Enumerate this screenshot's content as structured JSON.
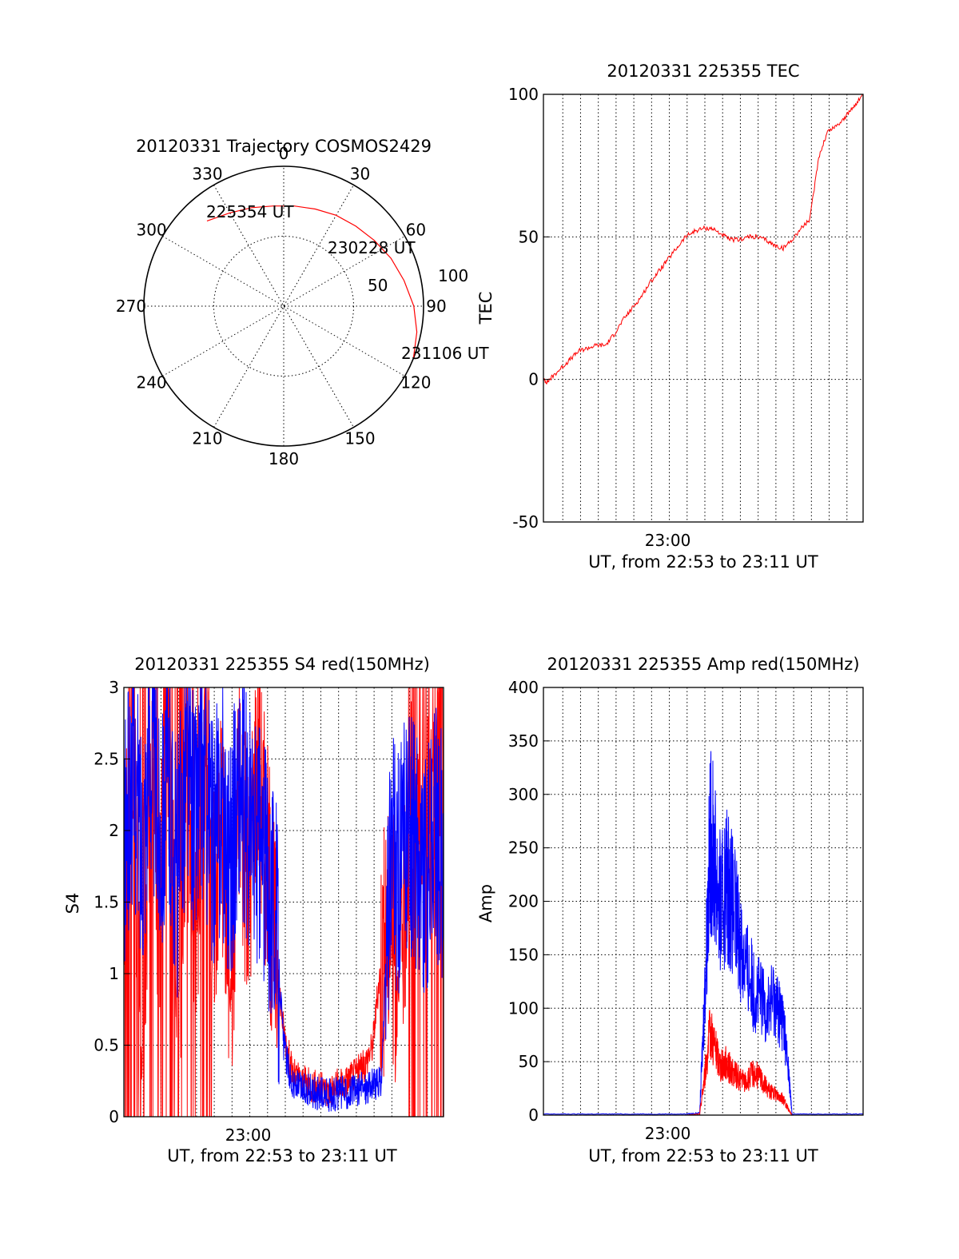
{
  "chart_data": [
    {
      "type": "polar",
      "title": "20120331 Trajectory COSMOS2429",
      "angle_labels": [
        "0",
        "30",
        "60",
        "90",
        "120",
        "150",
        "180",
        "210",
        "240",
        "270",
        "300",
        "330"
      ],
      "radius_labels": [
        "50",
        "100"
      ],
      "radius_range": [
        0,
        100
      ],
      "series": [
        {
          "name": "trajectory",
          "color": "#ff0000",
          "points": [
            {
              "az": 318,
              "zen": 82
            },
            {
              "az": 330,
              "zen": 77
            },
            {
              "az": 342,
              "zen": 74
            },
            {
              "az": 354,
              "zen": 72
            },
            {
              "az": 6,
              "zen": 72
            },
            {
              "az": 18,
              "zen": 73
            },
            {
              "az": 30,
              "zen": 75
            },
            {
              "az": 42,
              "zen": 77
            },
            {
              "az": 54,
              "zen": 80
            },
            {
              "az": 66,
              "zen": 84
            },
            {
              "az": 78,
              "zen": 88
            },
            {
              "az": 90,
              "zen": 93
            },
            {
              "az": 101,
              "zen": 97
            },
            {
              "az": 112,
              "zen": 100
            }
          ]
        }
      ],
      "annotations": [
        "225354 UT",
        "230228 UT",
        "231106 UT"
      ]
    },
    {
      "type": "line",
      "title": "20120331 225355 TEC",
      "xlabel": "UT, from 22:53 to 23:11 UT",
      "ylabel": "TEC",
      "xlim": [
        0,
        18
      ],
      "ylim": [
        -50,
        100
      ],
      "yticks": [
        -50,
        0,
        50,
        100
      ],
      "xticks": [
        {
          "t": 7,
          "label": "23:00"
        }
      ],
      "series": [
        {
          "name": "TEC",
          "color": "#ff0000",
          "x": [
            0,
            0.2,
            0.5,
            1,
            1.5,
            2,
            2.5,
            3,
            3.5,
            4,
            4.5,
            5,
            5.5,
            6,
            6.5,
            7,
            7.5,
            8,
            8.5,
            9,
            9.5,
            10,
            10.5,
            11,
            11.5,
            12,
            12.5,
            13,
            13.5,
            14,
            14.5,
            15,
            15.5,
            16,
            16.5,
            17,
            17.5,
            18
          ],
          "y": [
            0,
            -1,
            1,
            4,
            7,
            10,
            11,
            12,
            12,
            16,
            21,
            25,
            29,
            34,
            38,
            42,
            46,
            50,
            52,
            53,
            53,
            51,
            49,
            49,
            50,
            50,
            49,
            47,
            46,
            49,
            53,
            56,
            78,
            87,
            89,
            92,
            96,
            100
          ]
        }
      ]
    },
    {
      "type": "line",
      "title": "20120331 225355 S4 red(150MHz)",
      "xlabel": "UT, from 22:53 to 23:11 UT",
      "ylabel": "S4",
      "xlim": [
        0,
        18
      ],
      "ylim": [
        0,
        3
      ],
      "yticks": [
        "0",
        "0.5",
        "1",
        "1.5",
        "2",
        "2.5",
        "3"
      ],
      "xticks": [
        {
          "t": 7,
          "label": "23:00"
        }
      ],
      "series": [
        {
          "name": "S4 red (150MHz)",
          "color": "#ff0000",
          "x": [
            0,
            0.5,
            1,
            1.5,
            2,
            2.5,
            3,
            3.5,
            4,
            4.5,
            5,
            5.5,
            6,
            6.5,
            7,
            7.5,
            8,
            8.5,
            9,
            9.5,
            10,
            10.5,
            11,
            11.5,
            12,
            12.5,
            13,
            13.5,
            14,
            14.5,
            15,
            15.5,
            16,
            16.5,
            17,
            17.5,
            18
          ],
          "y": [
            1.6,
            2.9,
            0.3,
            2.7,
            1.2,
            2.8,
            0.5,
            2.5,
            1.0,
            2.9,
            1.4,
            2.2,
            0.8,
            2.4,
            1.5,
            2.6,
            1.9,
            1.2,
            0.6,
            0.3,
            0.25,
            0.22,
            0.2,
            0.18,
            0.22,
            0.25,
            0.3,
            0.35,
            0.5,
            1.1,
            1.4,
            0.9,
            1.9,
            2.6,
            1.8,
            2.4,
            3.0
          ]
        },
        {
          "name": "S4 blue",
          "color": "#0000ff",
          "x": [
            0,
            0.5,
            1,
            1.5,
            2,
            2.5,
            3,
            3.5,
            4,
            4.5,
            5,
            5.5,
            6,
            6.5,
            7,
            7.5,
            8,
            8.5,
            9,
            9.5,
            10,
            10.5,
            11,
            11.5,
            12,
            12.5,
            13,
            13.5,
            14,
            14.5,
            15,
            15.5,
            16,
            16.5,
            17,
            17.5,
            18
          ],
          "y": [
            1.8,
            2.4,
            1.9,
            2.6,
            2.0,
            2.3,
            1.7,
            2.5,
            2.1,
            2.4,
            1.9,
            2.2,
            1.8,
            2.3,
            2.0,
            1.9,
            1.7,
            1.5,
            0.5,
            0.22,
            0.2,
            0.18,
            0.16,
            0.15,
            0.16,
            0.17,
            0.18,
            0.2,
            0.22,
            0.25,
            1.8,
            1.7,
            2.0,
            1.9,
            1.6,
            2.0,
            1.8
          ]
        }
      ]
    },
    {
      "type": "line",
      "title": "20120331 225355 Amp red(150MHz)",
      "xlabel": "UT, from 22:53 to 23:11 UT",
      "ylabel": "Amp",
      "xlim": [
        0,
        18
      ],
      "ylim": [
        0,
        400
      ],
      "yticks": [
        0,
        50,
        100,
        150,
        200,
        250,
        300,
        350,
        400
      ],
      "xticks": [
        {
          "t": 7,
          "label": "23:00"
        }
      ],
      "series": [
        {
          "name": "Amp blue",
          "color": "#0000ff",
          "x": [
            0,
            2,
            4,
            6,
            8,
            8.8,
            9.1,
            9.4,
            9.7,
            10,
            10.3,
            10.6,
            11,
            11.4,
            11.8,
            12.2,
            12.6,
            13,
            13.3,
            13.5,
            13.8,
            14,
            16,
            18
          ],
          "y": [
            1,
            1,
            1,
            1,
            1,
            2,
            120,
            260,
            230,
            190,
            220,
            200,
            170,
            140,
            120,
            110,
            100,
            110,
            95,
            90,
            40,
            1,
            1,
            1
          ]
        },
        {
          "name": "Amp red",
          "color": "#ff0000",
          "x": [
            0,
            2,
            4,
            6,
            8,
            8.8,
            9.1,
            9.4,
            9.7,
            10,
            10.3,
            10.6,
            11,
            11.4,
            11.8,
            12.2,
            12.6,
            13,
            13.3,
            13.5,
            13.8,
            14,
            16,
            18
          ],
          "y": [
            0,
            0,
            0,
            0,
            0,
            1,
            40,
            80,
            60,
            45,
            50,
            40,
            35,
            30,
            40,
            35,
            25,
            20,
            18,
            15,
            5,
            0,
            0,
            0
          ]
        }
      ]
    }
  ]
}
